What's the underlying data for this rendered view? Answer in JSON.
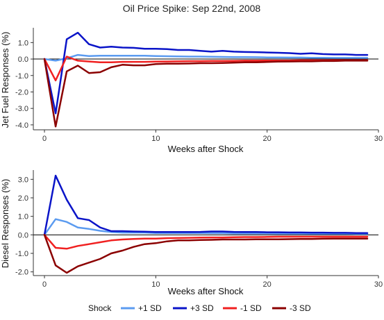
{
  "title": "Oil Price Spike: Sep 22nd, 2008",
  "legend": {
    "title": "Shock",
    "placement": "bottom"
  },
  "chart_data": [
    {
      "type": "line",
      "ylabel": "Jet Fuel Responses (%)",
      "xlabel": "Weeks after Shock",
      "xlim": [
        -1,
        30
      ],
      "ylim": [
        -4.3,
        1.9
      ],
      "xticks": [
        0,
        10,
        20,
        30
      ],
      "yticks": [
        -4.0,
        -3.0,
        -2.0,
        -1.0,
        0.0,
        1.0
      ],
      "ytick_labels": [
        "-4.0",
        "-3.0",
        "-2.0",
        "-1.0",
        "0.0",
        "1.0"
      ],
      "zero_line": true,
      "grid": false,
      "x": [
        0,
        1,
        2,
        3,
        4,
        5,
        6,
        7,
        8,
        9,
        10,
        11,
        12,
        13,
        14,
        15,
        16,
        17,
        18,
        19,
        20,
        21,
        22,
        23,
        24,
        25,
        26,
        27,
        28,
        29
      ],
      "series": [
        {
          "name": "+1 SD",
          "color": "#5b9bf0",
          "values": [
            0,
            -0.1,
            0.05,
            0.25,
            0.18,
            0.2,
            0.2,
            0.2,
            0.2,
            0.2,
            0.18,
            0.17,
            0.16,
            0.15,
            0.15,
            0.14,
            0.13,
            0.12,
            0.12,
            0.11,
            0.1,
            0.1,
            0.09,
            0.09,
            0.08,
            0.08,
            0.07,
            0.07,
            0.07,
            0.07
          ]
        },
        {
          "name": "+3 SD",
          "color": "#0a14c8",
          "values": [
            0,
            -3.3,
            1.2,
            1.6,
            0.9,
            0.7,
            0.75,
            0.7,
            0.68,
            0.62,
            0.62,
            0.6,
            0.55,
            0.55,
            0.5,
            0.45,
            0.5,
            0.45,
            0.43,
            0.42,
            0.4,
            0.38,
            0.36,
            0.32,
            0.35,
            0.3,
            0.28,
            0.28,
            0.25,
            0.25
          ]
        },
        {
          "name": "-1 SD",
          "color": "#f02020",
          "values": [
            0,
            -1.3,
            0.15,
            -0.1,
            -0.15,
            -0.2,
            -0.2,
            -0.17,
            -0.17,
            -0.17,
            -0.16,
            -0.15,
            -0.14,
            -0.13,
            -0.13,
            -0.12,
            -0.12,
            -0.11,
            -0.1,
            -0.1,
            -0.09,
            -0.09,
            -0.09,
            -0.08,
            -0.08,
            -0.08,
            -0.07,
            -0.07,
            -0.07,
            -0.07
          ]
        },
        {
          "name": "-3 SD",
          "color": "#8b0000",
          "values": [
            0,
            -4.1,
            -0.75,
            -0.4,
            -0.85,
            -0.8,
            -0.5,
            -0.35,
            -0.38,
            -0.38,
            -0.3,
            -0.28,
            -0.28,
            -0.27,
            -0.25,
            -0.25,
            -0.24,
            -0.22,
            -0.2,
            -0.2,
            -0.18,
            -0.16,
            -0.15,
            -0.14,
            -0.14,
            -0.12,
            -0.12,
            -0.1,
            -0.1,
            -0.1
          ]
        }
      ]
    },
    {
      "type": "line",
      "ylabel": "Diesel Responses (%)",
      "xlabel": "Weeks after Shock",
      "xlim": [
        -1,
        30
      ],
      "ylim": [
        -2.2,
        3.5
      ],
      "xticks": [
        0,
        10,
        20,
        30
      ],
      "yticks": [
        -2.0,
        -1.0,
        0.0,
        1.0,
        2.0,
        3.0
      ],
      "ytick_labels": [
        "-2.0",
        "-1.0",
        "0.0",
        "1.0",
        "2.0",
        "3.0"
      ],
      "zero_line": true,
      "grid": false,
      "x": [
        0,
        1,
        2,
        3,
        4,
        5,
        6,
        7,
        8,
        9,
        10,
        11,
        12,
        13,
        14,
        15,
        16,
        17,
        18,
        19,
        20,
        21,
        22,
        23,
        24,
        25,
        26,
        27,
        28,
        29
      ],
      "series": [
        {
          "name": "+1 SD",
          "color": "#5b9bf0",
          "values": [
            0,
            0.85,
            0.7,
            0.4,
            0.32,
            0.22,
            0.15,
            0.12,
            0.12,
            0.12,
            0.1,
            0.1,
            0.1,
            0.1,
            0.1,
            0.09,
            0.09,
            0.08,
            0.08,
            0.08,
            0.08,
            0.07,
            0.07,
            0.07,
            0.06,
            0.06,
            0.06,
            0.06,
            0.05,
            0.05
          ]
        },
        {
          "name": "+3 SD",
          "color": "#0a14c8",
          "values": [
            0,
            3.2,
            1.9,
            0.9,
            0.8,
            0.4,
            0.2,
            0.2,
            0.18,
            0.17,
            0.15,
            0.15,
            0.15,
            0.15,
            0.16,
            0.18,
            0.18,
            0.16,
            0.15,
            0.15,
            0.14,
            0.14,
            0.13,
            0.13,
            0.12,
            0.12,
            0.11,
            0.11,
            0.1,
            0.1
          ]
        },
        {
          "name": "-1 SD",
          "color": "#f02020",
          "values": [
            0,
            -0.7,
            -0.75,
            -0.6,
            -0.5,
            -0.4,
            -0.3,
            -0.25,
            -0.22,
            -0.2,
            -0.2,
            -0.18,
            -0.17,
            -0.16,
            -0.15,
            -0.14,
            -0.14,
            -0.13,
            -0.12,
            -0.12,
            -0.11,
            -0.1,
            -0.1,
            -0.1,
            -0.1,
            -0.1,
            -0.1,
            -0.1,
            -0.1,
            -0.1
          ]
        },
        {
          "name": "-3 SD",
          "color": "#8b0000",
          "values": [
            0,
            -1.65,
            -2.05,
            -1.7,
            -1.5,
            -1.3,
            -1.0,
            -0.85,
            -0.65,
            -0.5,
            -0.45,
            -0.35,
            -0.3,
            -0.3,
            -0.28,
            -0.27,
            -0.25,
            -0.25,
            -0.25,
            -0.24,
            -0.24,
            -0.24,
            -0.23,
            -0.22,
            -0.22,
            -0.21,
            -0.2,
            -0.2,
            -0.2,
            -0.2
          ]
        }
      ]
    }
  ]
}
